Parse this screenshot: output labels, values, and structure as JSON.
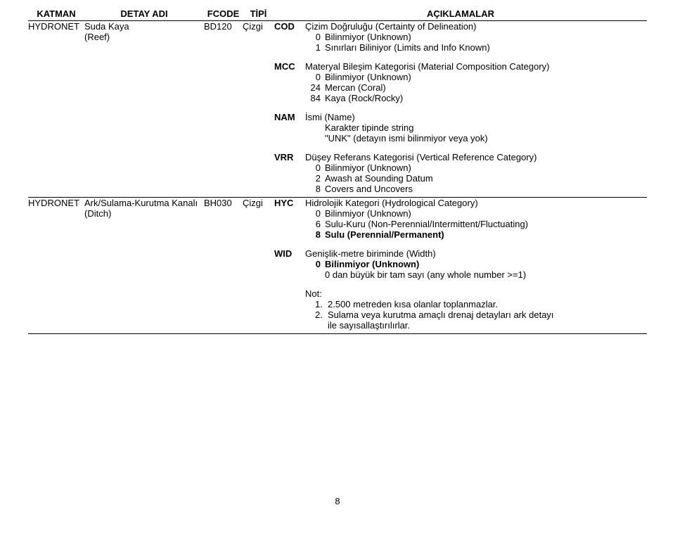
{
  "headers": {
    "katman": "KATMAN",
    "detay": "DETAY ADI",
    "fcode": "FCODE",
    "tipi": "TİPİ",
    "aciklama": "AÇIKLAMALAR"
  },
  "rows": [
    {
      "katman": "HYDRONET",
      "detay_main": "Suda Kaya",
      "detay_sub": "(Reef)",
      "fcode": "BD120",
      "tipi": "Çizgi",
      "attributes": [
        {
          "code": "COD",
          "title": "Çizim Doğruluğu (Certainty of Delineation)",
          "lines": [
            {
              "num": "0",
              "text": "Bilinmiyor (Unknown)"
            },
            {
              "num": "1",
              "text": "Sınırları Biliniyor (Limits and Info Known)"
            }
          ]
        },
        {
          "code": "MCC",
          "title": "Materyal Bileşim Kategorisi (Material Composition Category)",
          "lines": [
            {
              "num": "0",
              "text": "Bilinmiyor (Unknown)"
            },
            {
              "num": "24",
              "text": "Mercan (Coral)"
            },
            {
              "num": "84",
              "text": "Kaya (Rock/Rocky)"
            }
          ]
        },
        {
          "code": "NAM",
          "title": "İsmi (Name)",
          "lines": [
            {
              "num": "",
              "text": "Karakter tipinde string"
            },
            {
              "num": "",
              "text": "\"UNK\"  (detayın ismi bilinmiyor veya yok)"
            }
          ]
        },
        {
          "code": "VRR",
          "title": "Düşey Referans Kategorisi (Vertical Reference Category)",
          "lines": [
            {
              "num": "0",
              "text": "Bilinmiyor (Unknown)"
            },
            {
              "num": "2",
              "text": "Awash at Sounding Datum"
            },
            {
              "num": "8",
              "text": "Covers and Uncovers"
            }
          ]
        }
      ]
    },
    {
      "katman": "HYDRONET",
      "detay_main": "Ark/Sulama-Kurutma Kanalı",
      "detay_sub": "(Ditch)",
      "fcode": "BH030",
      "tipi": "Çizgi",
      "attributes": [
        {
          "code": "HYC",
          "title": "Hidrolojik Kategori (Hydrological Category)",
          "lines": [
            {
              "num": "0",
              "text": "Bilinmiyor (Unknown)"
            },
            {
              "num": "6",
              "text": "Sulu-Kuru (Non-Perennial/Intermittent/Fluctuating)"
            },
            {
              "num": "8",
              "text": "Sulu  (Perennial/Permanent)",
              "bold": true
            }
          ]
        },
        {
          "code": "WID",
          "title": "Genişlik-metre biriminde (Width)",
          "lines": [
            {
              "num": "0",
              "text": "Bilinmiyor (Unknown)",
              "bold": true
            },
            {
              "num": "",
              "text": "0 dan büyük bir tam sayı (any whole number >=1)"
            }
          ]
        }
      ],
      "not": {
        "label": "Not:",
        "items": [
          {
            "n": "1.",
            "t": "2.500 metreden kısa olanlar toplanmazlar."
          },
          {
            "n": "2.",
            "t": "Sulama veya kurutma amaçlı drenaj detayları ark detayı",
            "t2": "ile sayısallaştırılırlar."
          }
        ]
      }
    }
  ],
  "page_number": "8"
}
